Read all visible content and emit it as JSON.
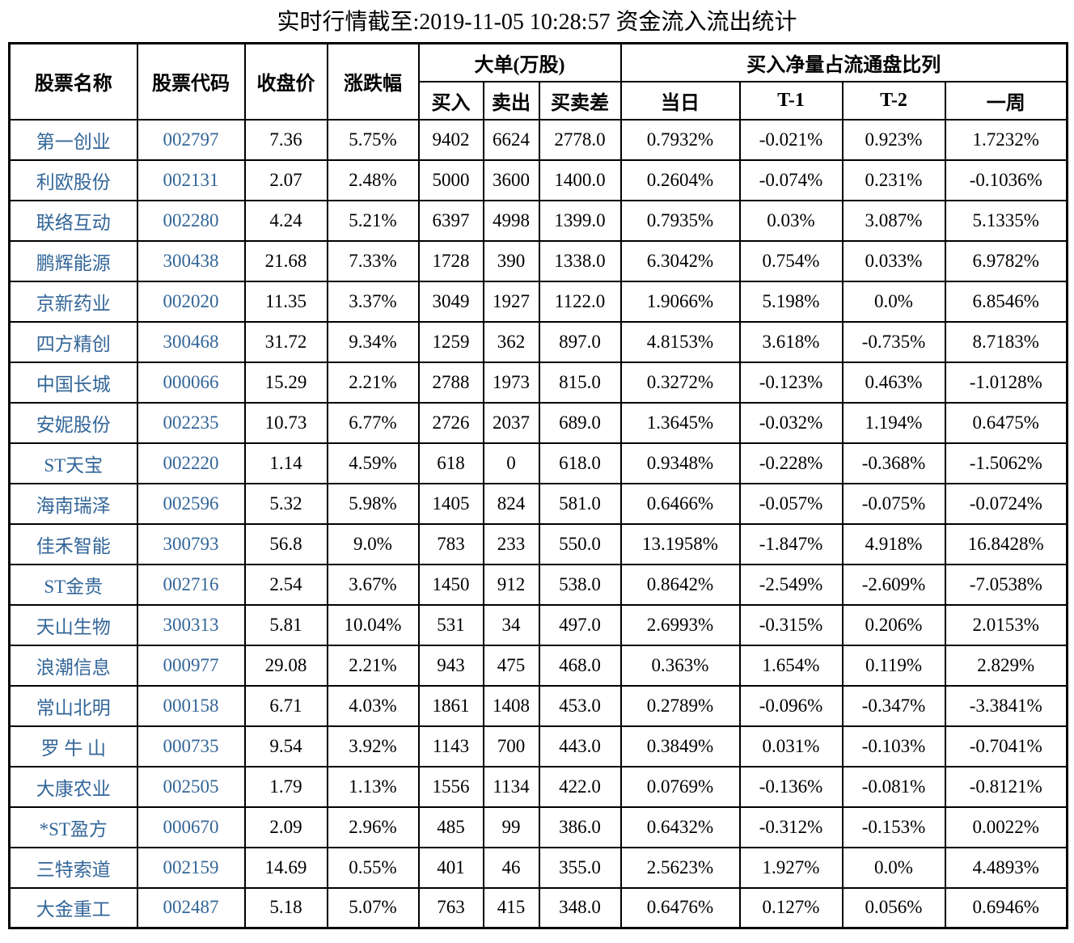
{
  "chart_data": {
    "type": "table",
    "title": "实时行情截至:2019-11-05 10:28:57 资金流入流出统计",
    "column_groups": {
      "large_orders": "大单(万股)",
      "net_buy_ratio": "买入净量占流通盘比列"
    },
    "columns": {
      "stock_name": "股票名称",
      "stock_code": "股票代码",
      "close_price": "收盘价",
      "change_pct": "涨跌幅",
      "buy": "买入",
      "sell": "卖出",
      "buy_sell_diff": "买卖差",
      "day": "当日",
      "t_minus_1": "T-1",
      "t_minus_2": "T-2",
      "week": "一周"
    },
    "rows": [
      [
        "第一创业",
        "002797",
        "7.36",
        "5.75%",
        "9402",
        "6624",
        "2778.0",
        "0.7932%",
        "-0.021%",
        "0.923%",
        "1.7232%"
      ],
      [
        "利欧股份",
        "002131",
        "2.07",
        "2.48%",
        "5000",
        "3600",
        "1400.0",
        "0.2604%",
        "-0.074%",
        "0.231%",
        "-0.1036%"
      ],
      [
        "联络互动",
        "002280",
        "4.24",
        "5.21%",
        "6397",
        "4998",
        "1399.0",
        "0.7935%",
        "0.03%",
        "3.087%",
        "5.1335%"
      ],
      [
        "鹏辉能源",
        "300438",
        "21.68",
        "7.33%",
        "1728",
        "390",
        "1338.0",
        "6.3042%",
        "0.754%",
        "0.033%",
        "6.9782%"
      ],
      [
        "京新药业",
        "002020",
        "11.35",
        "3.37%",
        "3049",
        "1927",
        "1122.0",
        "1.9066%",
        "5.198%",
        "0.0%",
        "6.8546%"
      ],
      [
        "四方精创",
        "300468",
        "31.72",
        "9.34%",
        "1259",
        "362",
        "897.0",
        "4.8153%",
        "3.618%",
        "-0.735%",
        "8.7183%"
      ],
      [
        "中国长城",
        "000066",
        "15.29",
        "2.21%",
        "2788",
        "1973",
        "815.0",
        "0.3272%",
        "-0.123%",
        "0.463%",
        "-1.0128%"
      ],
      [
        "安妮股份",
        "002235",
        "10.73",
        "6.77%",
        "2726",
        "2037",
        "689.0",
        "1.3645%",
        "-0.032%",
        "1.194%",
        "0.6475%"
      ],
      [
        "ST天宝",
        "002220",
        "1.14",
        "4.59%",
        "618",
        "0",
        "618.0",
        "0.9348%",
        "-0.228%",
        "-0.368%",
        "-1.5062%"
      ],
      [
        "海南瑞泽",
        "002596",
        "5.32",
        "5.98%",
        "1405",
        "824",
        "581.0",
        "0.6466%",
        "-0.057%",
        "-0.075%",
        "-0.0724%"
      ],
      [
        "佳禾智能",
        "300793",
        "56.8",
        "9.0%",
        "783",
        "233",
        "550.0",
        "13.1958%",
        "-1.847%",
        "4.918%",
        "16.8428%"
      ],
      [
        "ST金贵",
        "002716",
        "2.54",
        "3.67%",
        "1450",
        "912",
        "538.0",
        "0.8642%",
        "-2.549%",
        "-2.609%",
        "-7.0538%"
      ],
      [
        "天山生物",
        "300313",
        "5.81",
        "10.04%",
        "531",
        "34",
        "497.0",
        "2.6993%",
        "-0.315%",
        "0.206%",
        "2.0153%"
      ],
      [
        "浪潮信息",
        "000977",
        "29.08",
        "2.21%",
        "943",
        "475",
        "468.0",
        "0.363%",
        "1.654%",
        "0.119%",
        "2.829%"
      ],
      [
        "常山北明",
        "000158",
        "6.71",
        "4.03%",
        "1861",
        "1408",
        "453.0",
        "0.2789%",
        "-0.096%",
        "-0.347%",
        "-3.3841%"
      ],
      [
        "罗 牛 山",
        "000735",
        "9.54",
        "3.92%",
        "1143",
        "700",
        "443.0",
        "0.3849%",
        "0.031%",
        "-0.103%",
        "-0.7041%"
      ],
      [
        "大康农业",
        "002505",
        "1.79",
        "1.13%",
        "1556",
        "1134",
        "422.0",
        "0.0769%",
        "-0.136%",
        "-0.081%",
        "-0.8121%"
      ],
      [
        "*ST盈方",
        "000670",
        "2.09",
        "2.96%",
        "485",
        "99",
        "386.0",
        "0.6432%",
        "-0.312%",
        "-0.153%",
        "0.0022%"
      ],
      [
        "三特索道",
        "002159",
        "14.69",
        "0.55%",
        "401",
        "46",
        "355.0",
        "2.5623%",
        "1.927%",
        "0.0%",
        "4.4893%"
      ],
      [
        "大金重工",
        "002487",
        "5.18",
        "5.07%",
        "763",
        "415",
        "348.0",
        "0.6476%",
        "0.127%",
        "0.056%",
        "0.6946%"
      ]
    ]
  },
  "colors": {
    "stock_link_blue": "#336699",
    "border_black": "#000000",
    "text_black": "#000000",
    "background_white": "#ffffff"
  }
}
